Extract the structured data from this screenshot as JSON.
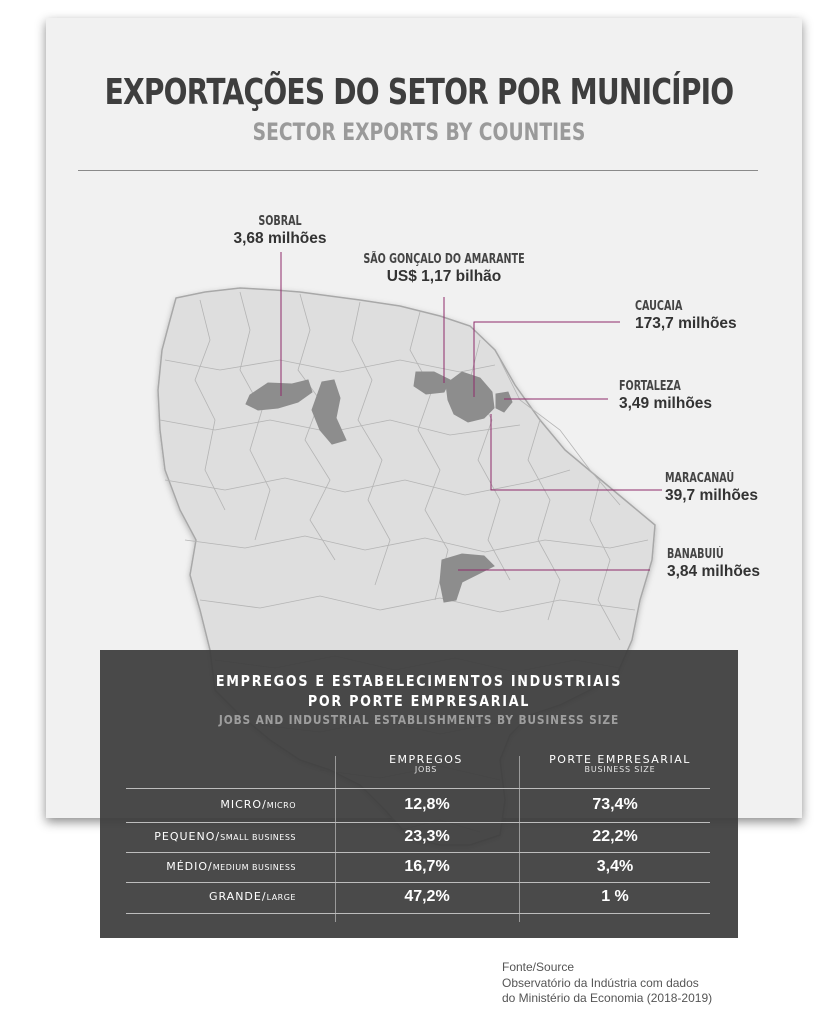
{
  "header": {
    "title": "EXPORTAÇÕES DO SETOR POR MUNICÍPIO",
    "subtitle": "SECTOR EXPORTS BY COUNTIES"
  },
  "callouts": [
    {
      "city": "SOBRAL",
      "value": "3,68 milhões"
    },
    {
      "city": "SÃO GONÇALO DO AMARANTE",
      "value": "US$ 1,17 bilhão"
    },
    {
      "city": "CAUCAIA",
      "value": "173,7 milhões"
    },
    {
      "city": "FORTALEZA",
      "value": "3,49 milhões"
    },
    {
      "city": "MARACANAÚ",
      "value": "39,7 milhões"
    },
    {
      "city": "BANABUIÚ",
      "value": "3,84 milhões"
    }
  ],
  "table": {
    "title_line1": "EMPREGOS E ESTABELECIMENTOS INDUSTRIAIS",
    "title_line2": "POR PORTE EMPRESARIAL",
    "subtitle": "JOBS AND INDUSTRIAL ESTABLISHMENTS BY BUSINESS SIZE",
    "col1": {
      "pt": "EMPREGOS",
      "en": "JOBS"
    },
    "col2": {
      "pt": "PORTE EMPRESARIAL",
      "en": "BUSINESS SIZE"
    },
    "rows": [
      {
        "pt": "MICRO/",
        "en": "MICRO",
        "jobs": "12,8%",
        "size": "73,4%"
      },
      {
        "pt": "PEQUENO/",
        "en": "SMALL BUSINESS",
        "jobs": "23,3%",
        "size": "22,2%"
      },
      {
        "pt": "MÉDIO/",
        "en": "MEDIUM BUSINESS",
        "jobs": "16,7%",
        "size": "3,4%"
      },
      {
        "pt": "GRANDE/",
        "en": "LARGE",
        "jobs": "47,2%",
        "size": "1 %"
      }
    ]
  },
  "source": {
    "line1": "Fonte/Source",
    "line2": "Observatório da Indústria com dados",
    "line3": "do Ministério da Economia (2018-2019)"
  },
  "colors": {
    "map_fill": "#dedede",
    "map_border": "#a8a8a8",
    "highlight": "#8d8d8d",
    "leader": "#8e2a6a",
    "panel": "#3c3c3c"
  }
}
